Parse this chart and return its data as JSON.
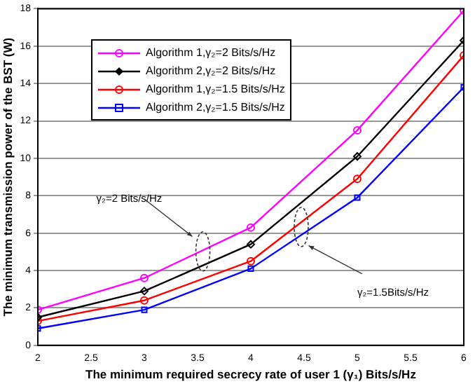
{
  "chart_data": {
    "type": "line",
    "xlabel": "The minimum required secrecy rate of user 1 (γ₁) Bits/s/Hz",
    "ylabel": "The minimum transmission power of the BST (W)",
    "x": [
      2,
      3,
      4,
      5,
      6
    ],
    "xlim": [
      2,
      6
    ],
    "xticks": [
      2,
      2.5,
      3,
      3.5,
      4,
      4.5,
      5,
      5.5,
      6
    ],
    "ylim": [
      0,
      18
    ],
    "yticks": [
      0,
      2,
      4,
      6,
      8,
      10,
      12,
      14,
      16,
      18
    ],
    "series": [
      {
        "name": "Algorithm 1,γ₂=2 Bits/s/Hz",
        "color": "#ff00ff",
        "marker": "circle",
        "values": [
          1.9,
          3.6,
          6.3,
          11.5,
          17.9
        ]
      },
      {
        "name": "Algorithm 2,γ₂=2 Bits/s/Hz",
        "color": "#000000",
        "marker": "diamond",
        "values": [
          1.5,
          2.9,
          5.4,
          10.1,
          16.3
        ]
      },
      {
        "name": "Algorithm 1,γ₂=1.5 Bits/s/Hz",
        "color": "#ff0000",
        "marker": "circle",
        "values": [
          1.3,
          2.4,
          4.5,
          8.9,
          15.5
        ]
      },
      {
        "name": "Algorithm 2,γ₂=1.5 Bits/s/Hz",
        "color": "#0000ff",
        "marker": "square",
        "values": [
          0.9,
          1.9,
          4.1,
          7.9,
          13.8
        ]
      }
    ],
    "grid": "y",
    "legend": "top left",
    "line_style": "solid",
    "annotations": [
      "γ₂=2 Bits/s/Hz",
      "γ₂=1.5Bits/s/Hz"
    ]
  }
}
